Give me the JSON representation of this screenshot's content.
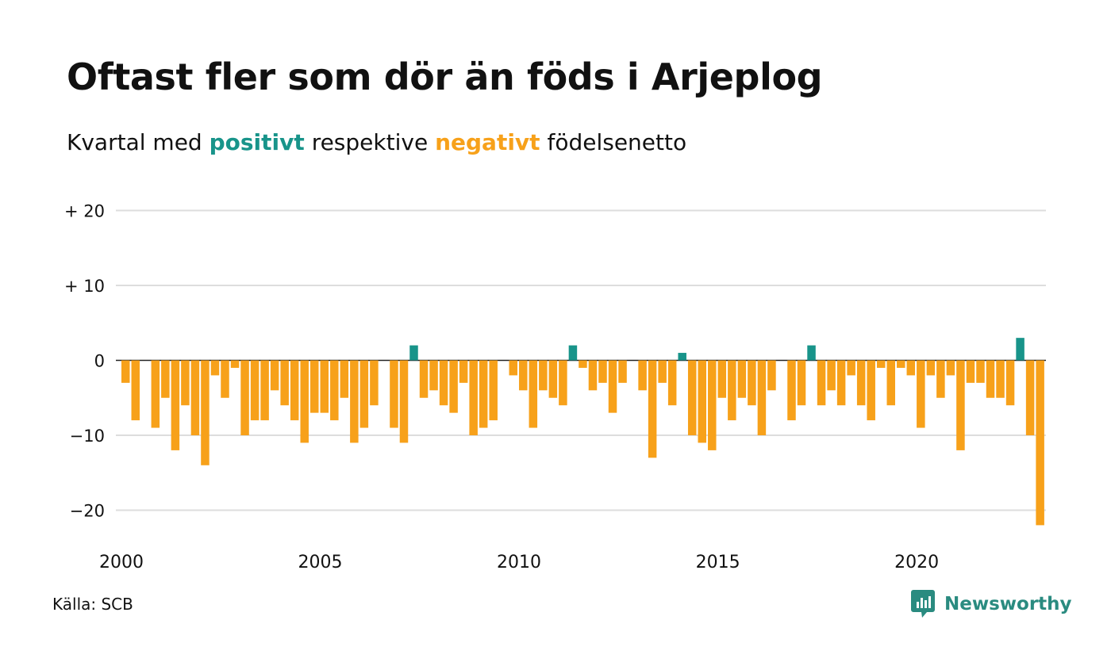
{
  "title": "Oftast fler som dör än föds i Arjeplog",
  "subtitle": {
    "prefix": "Kvartal med",
    "positive_word": "positivt",
    "middle": "respektive",
    "negative_word": "negativt",
    "suffix": "födelsenetto"
  },
  "source": "Källa: SCB",
  "brand": "Newsworthy",
  "colors": {
    "positive": "#18948a",
    "negative": "#f7a11a",
    "grid": "#dddddd",
    "brand": "#2a8b80"
  },
  "chart_data": {
    "type": "bar",
    "x_start": "2000 Q1",
    "y_tick_labels": [
      "+ 20",
      "+ 10",
      "0",
      "−10",
      "−20"
    ],
    "x_tick_labels": [
      "2000",
      "2005",
      "2010",
      "2015",
      "2020"
    ],
    "ylim": [
      -22,
      20
    ],
    "grid": true,
    "values": [
      -3,
      -8,
      0,
      -9,
      -5,
      -12,
      -6,
      -10,
      -14,
      -2,
      -5,
      -1,
      -10,
      -8,
      -8,
      -4,
      -6,
      -8,
      -11,
      -7,
      -7,
      -8,
      -5,
      -11,
      -9,
      -6,
      0,
      -9,
      -11,
      2,
      -5,
      -4,
      -6,
      -7,
      -3,
      -10,
      -9,
      -8,
      0,
      -2,
      -4,
      -9,
      -4,
      -5,
      -6,
      2,
      -1,
      -4,
      -3,
      -7,
      -3,
      0,
      -4,
      -13,
      -3,
      -6,
      1,
      -10,
      -11,
      -12,
      -5,
      -8,
      -5,
      -6,
      -10,
      -4,
      0,
      -8,
      -6,
      2,
      -6,
      -4,
      -6,
      -2,
      -6,
      -8,
      -1,
      -6,
      -1,
      -2,
      -9,
      -2,
      -5,
      -2,
      -12,
      -3,
      -3,
      -5,
      -5,
      -6,
      3,
      -10,
      -22
    ]
  }
}
